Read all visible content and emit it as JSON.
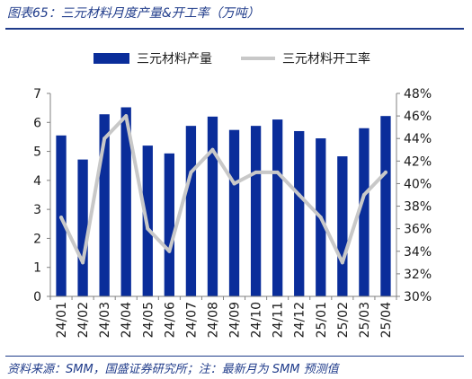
{
  "figure": {
    "title": "图表65：三元材料月度产量&开工率（万吨）",
    "source": "资料来源：SMM，国盛证券研究所；注：最新月为 SMM 预测值"
  },
  "colors": {
    "bar": "#0a2d9a",
    "line": "#c8c8c8",
    "axis": "#808080",
    "text": "#1a1a1a"
  },
  "chart_data": {
    "type": "bar",
    "categories": [
      "24/01",
      "24/02",
      "24/03",
      "24/04",
      "24/05",
      "24/06",
      "24/07",
      "24/08",
      "24/09",
      "24/10",
      "24/11",
      "24/12",
      "25/01",
      "25/02",
      "25/03",
      "25/04"
    ],
    "series": [
      {
        "name": "三元材料产量",
        "type": "bar",
        "axis": "left",
        "values": [
          5.55,
          4.72,
          6.28,
          6.52,
          5.2,
          4.93,
          5.88,
          6.2,
          5.74,
          5.88,
          6.1,
          5.7,
          5.45,
          4.83,
          5.8,
          6.22
        ]
      },
      {
        "name": "三元材料开工率",
        "type": "line",
        "axis": "right",
        "values": [
          37,
          33,
          44,
          46,
          36,
          34,
          41,
          43,
          40,
          41,
          41,
          39,
          37,
          33,
          39,
          41
        ]
      }
    ],
    "y_left": {
      "range": [
        0,
        7
      ],
      "ticks": [
        "0",
        "1",
        "2",
        "3",
        "4",
        "5",
        "6",
        "7"
      ]
    },
    "y_right": {
      "range": [
        30,
        48
      ],
      "ticks": [
        "30%",
        "32%",
        "34%",
        "36%",
        "38%",
        "40%",
        "42%",
        "44%",
        "46%",
        "48%"
      ]
    },
    "legend": {
      "placement": "top-center",
      "items": [
        "三元材料产量",
        "三元材料开工率"
      ]
    },
    "grid": false
  }
}
